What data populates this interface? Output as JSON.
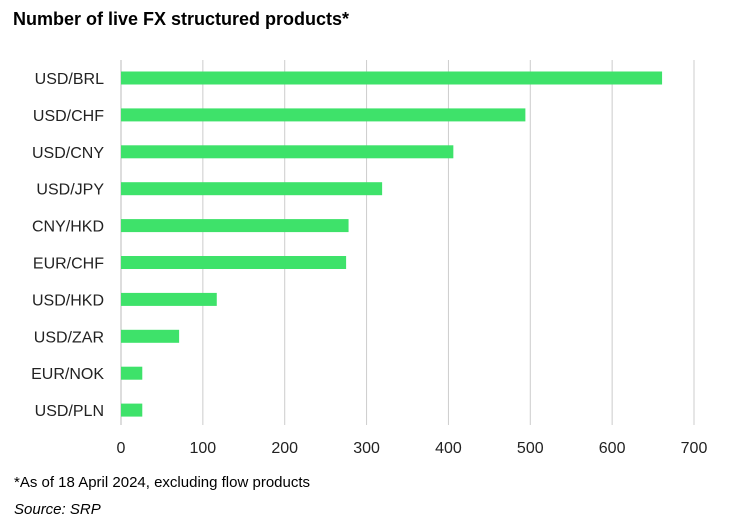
{
  "chart_data": {
    "type": "bar",
    "orientation": "horizontal",
    "title": "Number of live FX structured products*",
    "categories": [
      "USD/BRL",
      "USD/CHF",
      "USD/CNY",
      "USD/JPY",
      "CNY/HKD",
      "EUR/CHF",
      "USD/HKD",
      "USD/ZAR",
      "EUR/NOK",
      "USD/PLN"
    ],
    "values": [
      661,
      494,
      406,
      319,
      278,
      275,
      117,
      71,
      26,
      26
    ],
    "xlim": [
      0,
      700
    ],
    "xticks": [
      "0",
      "100",
      "200",
      "300",
      "400",
      "500",
      "600",
      "700"
    ],
    "xlabel": "",
    "ylabel": "",
    "grid": "vertical",
    "bar_color": "#3ee26a",
    "footnote": "*As of 18 April 2024, excluding flow products",
    "source": "Source: SRP"
  }
}
